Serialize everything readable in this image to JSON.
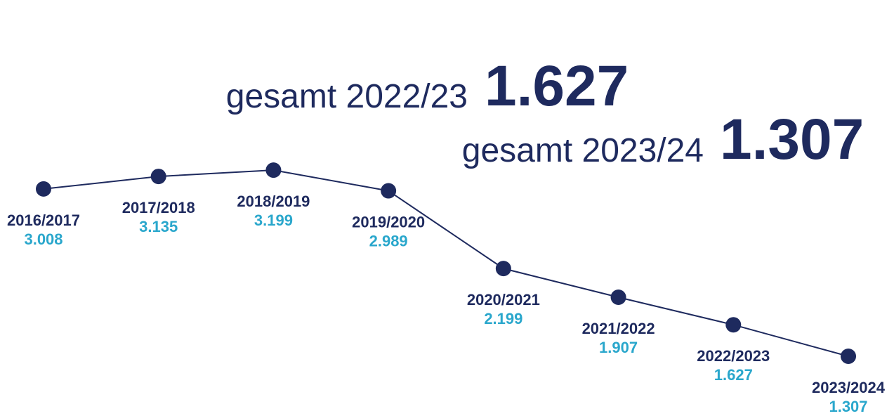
{
  "chart_data": {
    "type": "line",
    "annotations": [
      {
        "text": "gesamt 2022/23",
        "figure": "1.627"
      },
      {
        "text": "gesamt 2023/24",
        "figure": "1.307"
      }
    ],
    "categories": [
      "2016/2017",
      "2017/2018",
      "2018/2019",
      "2019/2020",
      "2020/2021",
      "2021/2022",
      "2022/2023",
      "2023/2024"
    ],
    "values": [
      3008,
      3135,
      3199,
      2989,
      2199,
      1907,
      1627,
      1307
    ],
    "value_labels": [
      "3.008",
      "3.135",
      "3.199",
      "2.989",
      "2.199",
      "1.907",
      "1.627",
      "1.307"
    ],
    "color": "#1e2a5e",
    "value_label_color": "#2aa7cc",
    "ylim": [
      1000,
      3500
    ]
  }
}
